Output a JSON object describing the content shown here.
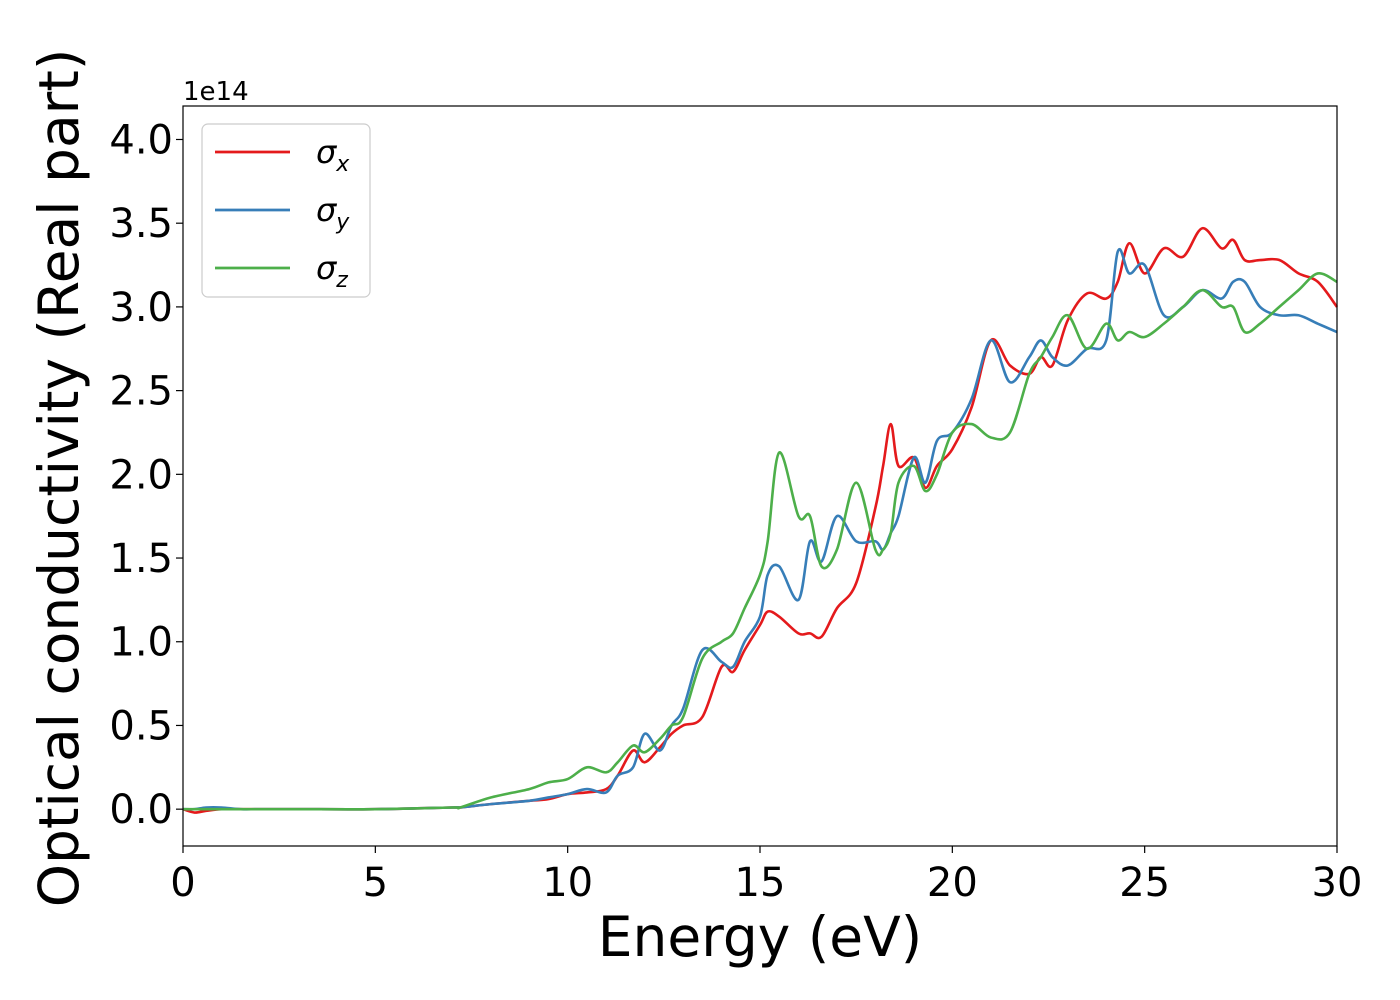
{
  "chart_data": {
    "type": "line",
    "title": "",
    "xlabel": "Energy (eV)",
    "ylabel": "Optical conductivity (Real part)",
    "y_offset_label": "1e14",
    "xlim": [
      0,
      30
    ],
    "ylim": [
      -0.22,
      4.2
    ],
    "x_ticks": [
      0,
      5,
      10,
      15,
      20,
      25,
      30
    ],
    "x_tick_labels": [
      "0",
      "5",
      "10",
      "15",
      "20",
      "25",
      "30"
    ],
    "y_ticks": [
      0.0,
      0.5,
      1.0,
      1.5,
      2.0,
      2.5,
      3.0,
      3.5,
      4.0
    ],
    "y_tick_labels": [
      "0.0",
      "0.5",
      "1.0",
      "1.5",
      "2.0",
      "2.5",
      "3.0",
      "3.5",
      "4.0"
    ],
    "grid": false,
    "legend_position": "top-left",
    "series": [
      {
        "name": "σx",
        "legend_symbol": "σ",
        "legend_sub": "x",
        "color": "#e41a1c",
        "x": [
          0,
          0.3,
          0.6,
          1,
          1.5,
          2,
          3,
          5,
          7,
          7.2,
          8,
          9,
          9.5,
          10,
          10.5,
          11,
          11.3,
          11.7,
          12,
          12.4,
          12.7,
          13,
          13.5,
          14,
          14.3,
          14.6,
          15,
          15.2,
          15.5,
          16,
          16.3,
          16.6,
          17,
          17.5,
          18,
          18.2,
          18.4,
          18.6,
          19,
          19.3,
          19.6,
          20,
          20.5,
          21,
          21.5,
          22,
          22.3,
          22.6,
          23,
          23.5,
          24,
          24.3,
          24.6,
          25,
          25.5,
          26,
          26.5,
          27,
          27.3,
          27.6,
          28,
          28.5,
          29,
          29.5,
          30
        ],
        "y": [
          0.0,
          -0.02,
          -0.01,
          0.0,
          0.0,
          0.0,
          0.0,
          0.0,
          0.01,
          0.01,
          0.03,
          0.05,
          0.06,
          0.09,
          0.1,
          0.12,
          0.2,
          0.35,
          0.28,
          0.37,
          0.45,
          0.5,
          0.55,
          0.85,
          0.82,
          0.95,
          1.1,
          1.18,
          1.15,
          1.05,
          1.05,
          1.03,
          1.2,
          1.35,
          1.8,
          2.05,
          2.3,
          2.05,
          2.1,
          1.92,
          2.05,
          2.15,
          2.4,
          2.8,
          2.65,
          2.6,
          2.7,
          2.65,
          2.92,
          3.08,
          3.05,
          3.15,
          3.38,
          3.2,
          3.35,
          3.3,
          3.47,
          3.35,
          3.4,
          3.28,
          3.28,
          3.28,
          3.2,
          3.15,
          3.0
        ]
      },
      {
        "name": "σy",
        "legend_symbol": "σ",
        "legend_sub": "y",
        "color": "#377eb8",
        "x": [
          0,
          0.3,
          0.6,
          1,
          1.5,
          2,
          3,
          5,
          7,
          7.2,
          8,
          9,
          9.5,
          10,
          10.5,
          11,
          11.3,
          11.7,
          12,
          12.4,
          12.7,
          13,
          13.5,
          14,
          14.3,
          14.6,
          15,
          15.2,
          15.5,
          16,
          16.3,
          16.6,
          17,
          17.5,
          18,
          18.2,
          18.4,
          18.6,
          19,
          19.3,
          19.6,
          20,
          20.5,
          21,
          21.5,
          22,
          22.3,
          22.6,
          23,
          23.5,
          24,
          24.3,
          24.6,
          25,
          25.5,
          26,
          26.5,
          27,
          27.3,
          27.6,
          28,
          28.5,
          29,
          29.5,
          30
        ],
        "y": [
          0.0,
          0.0,
          0.01,
          0.01,
          0.0,
          0.0,
          0.0,
          0.0,
          0.01,
          0.01,
          0.03,
          0.05,
          0.07,
          0.09,
          0.12,
          0.1,
          0.2,
          0.25,
          0.45,
          0.35,
          0.5,
          0.6,
          0.95,
          0.88,
          0.85,
          1.0,
          1.15,
          1.4,
          1.45,
          1.25,
          1.6,
          1.48,
          1.75,
          1.6,
          1.6,
          1.55,
          1.65,
          1.75,
          2.1,
          1.95,
          2.2,
          2.25,
          2.45,
          2.8,
          2.55,
          2.7,
          2.8,
          2.7,
          2.65,
          2.75,
          2.8,
          3.33,
          3.2,
          3.25,
          2.95,
          3.0,
          3.1,
          3.05,
          3.15,
          3.15,
          3.0,
          2.95,
          2.95,
          2.9,
          2.85
        ]
      },
      {
        "name": "σz",
        "legend_symbol": "σ",
        "legend_sub": "z",
        "color": "#4daf4a",
        "x": [
          0,
          0.3,
          0.6,
          1,
          1.5,
          2,
          3,
          5,
          7,
          7.2,
          8,
          9,
          9.5,
          10,
          10.5,
          11,
          11.3,
          11.7,
          12,
          12.4,
          12.7,
          13,
          13.5,
          14,
          14.3,
          14.6,
          15,
          15.2,
          15.5,
          16,
          16.3,
          16.6,
          17,
          17.5,
          18,
          18.2,
          18.4,
          18.6,
          19,
          19.3,
          19.6,
          20,
          20.5,
          21,
          21.5,
          22,
          22.3,
          22.6,
          23,
          23.5,
          24,
          24.3,
          24.6,
          25,
          25.5,
          26,
          26.5,
          27,
          27.3,
          27.6,
          28,
          28.5,
          29,
          29.5,
          30
        ],
        "y": [
          0.0,
          0.0,
          0.0,
          0.0,
          0.0,
          0.0,
          0.0,
          0.0,
          0.01,
          0.01,
          0.07,
          0.12,
          0.16,
          0.18,
          0.25,
          0.22,
          0.28,
          0.38,
          0.34,
          0.42,
          0.5,
          0.55,
          0.9,
          1.0,
          1.05,
          1.2,
          1.4,
          1.6,
          2.13,
          1.75,
          1.75,
          1.45,
          1.55,
          1.95,
          1.55,
          1.55,
          1.65,
          1.95,
          2.05,
          1.9,
          2.0,
          2.25,
          2.3,
          2.22,
          2.25,
          2.6,
          2.7,
          2.82,
          2.95,
          2.75,
          2.9,
          2.8,
          2.85,
          2.82,
          2.9,
          3.0,
          3.1,
          3.0,
          3.0,
          2.85,
          2.9,
          3.0,
          3.1,
          3.2,
          3.15
        ]
      }
    ]
  }
}
